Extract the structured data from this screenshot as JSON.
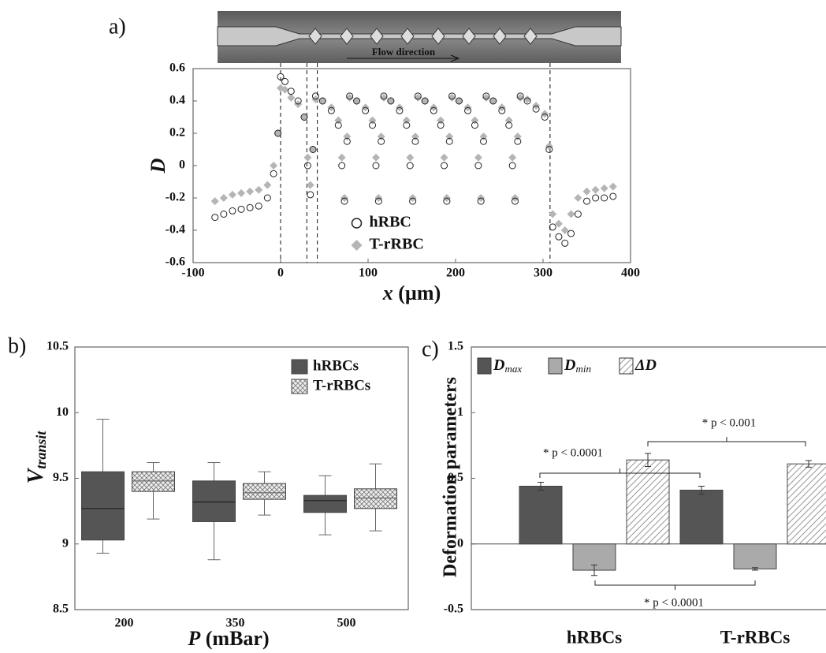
{
  "chart_data": [
    {
      "type": "scatter",
      "panel_label": "a)",
      "image_caption": "Flow direction",
      "y_label": "D",
      "x_label": {
        "symbol": "x",
        "unit": " (µm)"
      },
      "xlim": [
        -100,
        400
      ],
      "xticks": [
        -100,
        0,
        100,
        200,
        300,
        400
      ],
      "ylim": [
        -0.6,
        0.6
      ],
      "yticks": [
        -0.6,
        -0.4,
        -0.2,
        0,
        0.2,
        0.4,
        0.6
      ],
      "vlines": [
        0,
        30,
        42,
        308
      ],
      "legend": "lower center",
      "x": [
        -75,
        -65,
        -55,
        -45,
        -35,
        -25,
        -15,
        -8,
        -3,
        0,
        5,
        12,
        20,
        27,
        31,
        34,
        37,
        40,
        48,
        58,
        66,
        70,
        73,
        76,
        79,
        87,
        97,
        105,
        109,
        112,
        115,
        118,
        126,
        136,
        144,
        148,
        151,
        154,
        157,
        165,
        175,
        183,
        187,
        190,
        193,
        196,
        204,
        214,
        222,
        226,
        229,
        232,
        235,
        243,
        253,
        261,
        265,
        268,
        271,
        274,
        282,
        292,
        302,
        307,
        311,
        318,
        325,
        332,
        340,
        350,
        360,
        370,
        380
      ],
      "series": [
        {
          "name": "hRBC",
          "color": "#222222",
          "marker": "circle",
          "values": [
            -0.32,
            -0.3,
            -0.28,
            -0.27,
            -0.26,
            -0.25,
            -0.2,
            -0.05,
            0.2,
            0.55,
            0.52,
            0.46,
            0.4,
            0.3,
            0,
            -0.18,
            0.1,
            0.43,
            0.4,
            0.34,
            0.25,
            0,
            -0.22,
            0.15,
            0.43,
            0.4,
            0.34,
            0.25,
            0,
            -0.22,
            0.15,
            0.43,
            0.4,
            0.34,
            0.25,
            0,
            -0.22,
            0.15,
            0.43,
            0.4,
            0.34,
            0.25,
            0,
            -0.22,
            0.15,
            0.43,
            0.4,
            0.34,
            0.25,
            0,
            -0.22,
            0.15,
            0.43,
            0.4,
            0.34,
            0.25,
            0,
            -0.22,
            0.15,
            0.43,
            0.4,
            0.35,
            0.3,
            0.1,
            -0.38,
            -0.44,
            -0.48,
            -0.42,
            -0.3,
            -0.22,
            -0.2,
            -0.2,
            -0.19
          ]
        },
        {
          "name": "T-rRBC",
          "color": "#b5b5b5",
          "marker": "diamond",
          "values": [
            -0.22,
            -0.2,
            -0.18,
            -0.17,
            -0.16,
            -0.15,
            -0.12,
            0,
            0.2,
            0.48,
            0.47,
            0.42,
            0.38,
            0.3,
            0.05,
            -0.12,
            0.1,
            0.41,
            0.4,
            0.36,
            0.28,
            0.05,
            -0.2,
            0.18,
            0.42,
            0.4,
            0.36,
            0.28,
            0.05,
            -0.2,
            0.18,
            0.42,
            0.4,
            0.36,
            0.28,
            0.05,
            -0.2,
            0.18,
            0.42,
            0.4,
            0.36,
            0.28,
            0.05,
            -0.2,
            0.18,
            0.42,
            0.4,
            0.36,
            0.28,
            0.05,
            -0.2,
            0.18,
            0.42,
            0.4,
            0.36,
            0.28,
            0.05,
            -0.2,
            0.18,
            0.42,
            0.41,
            0.37,
            0.32,
            0.12,
            -0.3,
            -0.36,
            -0.4,
            -0.3,
            -0.2,
            -0.16,
            -0.15,
            -0.14,
            -0.13
          ]
        }
      ]
    },
    {
      "type": "box",
      "panel_label": "b)",
      "y_label": {
        "symbol": "V",
        "subscript": "transit"
      },
      "x_label": {
        "symbol": "P",
        "unit": " (mBar)"
      },
      "ylim": [
        8.5,
        10.5
      ],
      "yticks": [
        8.5,
        9,
        9.5,
        10,
        10.5
      ],
      "legend": "upper right",
      "categories": [
        "200",
        "350",
        "500"
      ],
      "series": [
        {
          "name": "hRBCs",
          "color": "#555555",
          "hatch": "none",
          "values": [
            [
              8.93,
              9.03,
              9.27,
              9.55,
              9.95
            ],
            [
              8.88,
              9.17,
              9.32,
              9.48,
              9.62
            ],
            [
              9.07,
              9.24,
              9.33,
              9.37,
              9.52
            ]
          ]
        },
        {
          "name": "T-rRBCs",
          "color": "#dcdcdc",
          "hatch": "cross",
          "values": [
            [
              9.19,
              9.4,
              9.48,
              9.55,
              9.62
            ],
            [
              9.22,
              9.34,
              9.39,
              9.46,
              9.55
            ],
            [
              9.1,
              9.27,
              9.35,
              9.42,
              9.61
            ]
          ]
        }
      ]
    },
    {
      "type": "bar",
      "panel_label": "c)",
      "y_label": "Deformation parameters",
      "ylim": [
        -0.5,
        1.5
      ],
      "yticks": [
        -0.5,
        0,
        0.5,
        1,
        1.5
      ],
      "legend": "upper left",
      "categories": [
        "hRBCs",
        "T-rRBCs"
      ],
      "series": [
        {
          "name": "D",
          "subscript": "max",
          "color": "#555555",
          "hatch": "none",
          "values": [
            0.44,
            0.41
          ],
          "errors": [
            0.03,
            0.03
          ]
        },
        {
          "name": "D",
          "subscript": "min",
          "color": "#aaaaaa",
          "hatch": "none",
          "values": [
            -0.2,
            -0.19
          ],
          "errors": [
            0.04,
            0.01
          ]
        },
        {
          "name": "ΔD",
          "color": "#ffffff",
          "hatch": "diagonal",
          "values": [
            0.64,
            0.61
          ],
          "errors": [
            0.05,
            0.025
          ]
        }
      ],
      "annotations": [
        "* p < 0.0001",
        "* p < 0.001",
        "* p < 0.0001"
      ]
    }
  ]
}
